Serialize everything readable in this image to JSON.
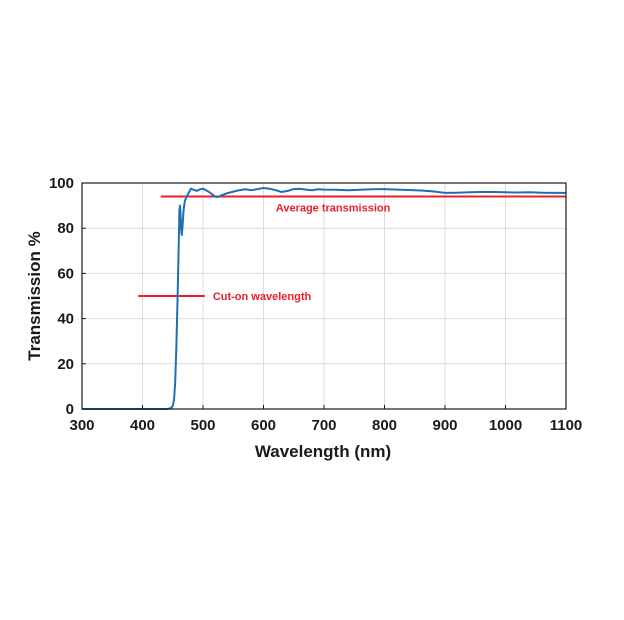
{
  "chart_data": {
    "type": "line",
    "title": "",
    "xlabel": "Wavelength (nm)",
    "ylabel": "Transmission %",
    "xlim": [
      300,
      1100
    ],
    "ylim": [
      0,
      100
    ],
    "xticks": [
      300,
      400,
      500,
      600,
      700,
      800,
      900,
      1000,
      1100
    ],
    "yticks": [
      0,
      20,
      40,
      60,
      80,
      100
    ],
    "grid": true,
    "series": [
      {
        "color": "#1f6fb5",
        "x": [
          300,
          440,
          445,
          448,
          450,
          452,
          454,
          456,
          458,
          460,
          461,
          462,
          463,
          464,
          465,
          466,
          468,
          470,
          472,
          475,
          478,
          480,
          485,
          490,
          495,
          500,
          505,
          510,
          515,
          520,
          525,
          530,
          540,
          550,
          560,
          570,
          580,
          590,
          600,
          610,
          620,
          630,
          640,
          650,
          660,
          670,
          680,
          690,
          700,
          720,
          740,
          760,
          780,
          800,
          820,
          840,
          860,
          880,
          900,
          920,
          940,
          960,
          980,
          1000,
          1020,
          1040,
          1060,
          1080,
          1100
        ],
        "y": [
          0,
          0,
          0.2,
          0.6,
          1.5,
          4,
          12,
          28,
          50,
          74,
          88,
          90,
          86,
          79,
          77,
          80,
          88,
          92,
          93.5,
          95,
          96.5,
          97.5,
          97,
          96.5,
          97.2,
          97.5,
          96.8,
          96,
          95,
          94,
          93.8,
          94.5,
          95.5,
          96.2,
          96.8,
          97.2,
          96.8,
          97.3,
          97.8,
          97.5,
          96.8,
          96,
          96.5,
          97.3,
          97.5,
          97.1,
          96.8,
          97.2,
          97.1,
          97,
          96.8,
          97,
          97.2,
          97.3,
          97.1,
          96.9,
          96.7,
          96.3,
          95.6,
          95.7,
          95.9,
          96,
          96,
          95.9,
          95.8,
          95.9,
          95.7,
          95.6,
          95.6
        ]
      }
    ],
    "annotations": [
      {
        "label": "Average transmission",
        "color": "#e8202a",
        "line_y": 94,
        "line_x": [
          430,
          1100
        ]
      },
      {
        "label": "Cut-on wavelength",
        "color": "#e8202a",
        "line_y": 50,
        "line_x": [
          393,
          503
        ]
      }
    ]
  }
}
